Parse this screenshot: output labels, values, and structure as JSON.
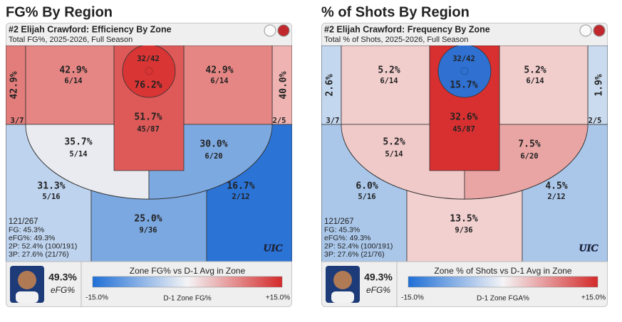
{
  "panels": [
    {
      "heading": "FG% By Region",
      "title": "#2 Elijah Crawford: Efficiency By Zone",
      "subtitle": "Total FG%, 2025-2026, Full Season",
      "zones": [
        {
          "value": "42.9%",
          "count": "3/7",
          "color": "#e27d7b"
        },
        {
          "value": "42.9%",
          "count": "6/14",
          "color": "#e58684"
        },
        {
          "value": "76.2%",
          "count": "32/42",
          "color": "#d93535"
        },
        {
          "value": "51.7%",
          "count": "45/87",
          "color": "#dd5a58"
        },
        {
          "value": "42.9%",
          "count": "6/14",
          "color": "#e58684"
        },
        {
          "value": "40.0%",
          "count": "2/5",
          "color": "#efb3b1"
        },
        {
          "value": "35.7%",
          "count": "5/14",
          "color": "#e9ebf1"
        },
        {
          "value": "30.0%",
          "count": "6/20",
          "color": "#7da9e1"
        },
        {
          "value": "31.3%",
          "count": "5/16",
          "color": "#bed3ee"
        },
        {
          "value": "25.0%",
          "count": "9/36",
          "color": "#7ba8e0"
        },
        {
          "value": "16.7%",
          "count": "2/12",
          "color": "#2b74d6"
        }
      ],
      "stats": [
        "121/267",
        "FG: 45.3%",
        "eFG%: 49.3%",
        "2P: 52.4% (100/191)",
        "3P: 27.6% (21/76)"
      ],
      "logo": "UIC",
      "efg": "49.3%",
      "efg_label": "eFG%",
      "legend_title": "Zone FG% vs D-1 Avg in Zone",
      "legend_min": "-15.0%",
      "legend_label": "D-1 Zone FG%",
      "legend_max": "+15.0%"
    },
    {
      "heading": "% of Shots By Region",
      "title": "#2 Elijah Crawford: Frequency By Zone",
      "subtitle": "Total % of Shots, 2025-2026, Full Season",
      "zones": [
        {
          "value": "2.6%",
          "count": "3/7",
          "color": "#c3d7ef"
        },
        {
          "value": "5.2%",
          "count": "6/14",
          "color": "#f1cdcc"
        },
        {
          "value": "15.7%",
          "count": "32/42",
          "color": "#2f70d1"
        },
        {
          "value": "32.6%",
          "count": "45/87",
          "color": "#d83030"
        },
        {
          "value": "5.2%",
          "count": "6/14",
          "color": "#f1cdcc"
        },
        {
          "value": "1.9%",
          "count": "2/5",
          "color": "#cadbef"
        },
        {
          "value": "5.2%",
          "count": "5/14",
          "color": "#f0c9c9"
        },
        {
          "value": "7.5%",
          "count": "6/20",
          "color": "#e8a5a3"
        },
        {
          "value": "6.0%",
          "count": "5/16",
          "color": "#aac7ea"
        },
        {
          "value": "13.5%",
          "count": "9/36",
          "color": "#f2d0d0"
        },
        {
          "value": "4.5%",
          "count": "2/12",
          "color": "#aac7ea"
        }
      ],
      "stats": [
        "121/267",
        "FG: 45.3%",
        "eFG%: 49.3%",
        "2P: 52.4% (100/191)",
        "3P: 27.6% (21/76)"
      ],
      "logo": "UIC",
      "efg": "49.3%",
      "efg_label": "eFG%",
      "legend_title": "Zone % of Shots vs D-1 Avg in Zone",
      "legend_min": "-15.0%",
      "legend_label": "D-1 Zone FGA%",
      "legend_max": "+15.0%"
    }
  ]
}
